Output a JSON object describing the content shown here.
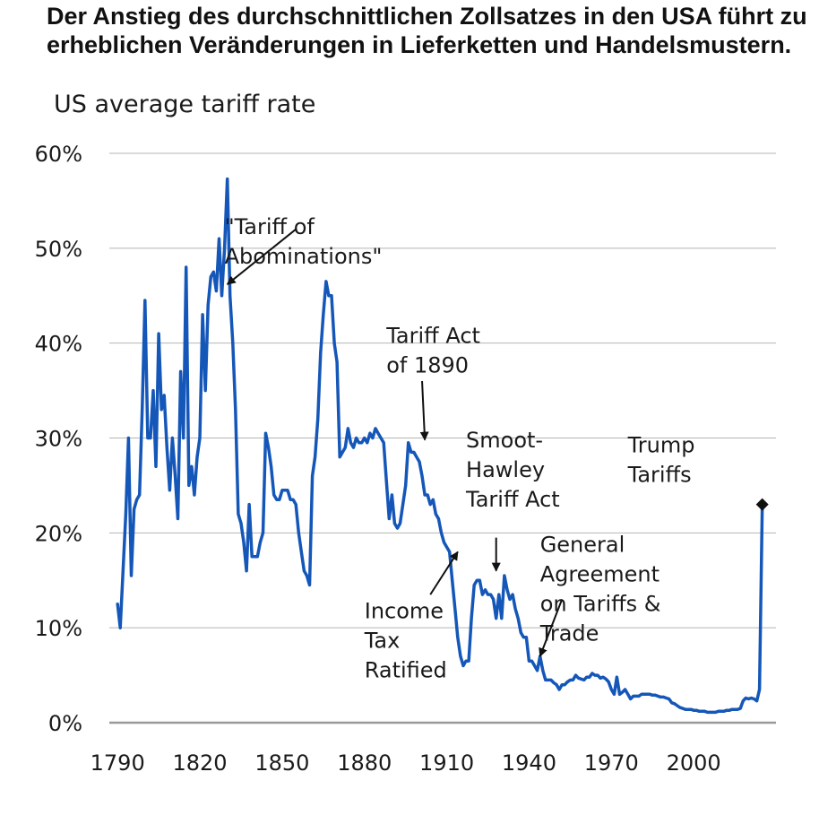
{
  "chart_data": {
    "type": "line",
    "title": "Der Anstieg des durchschnittlichen Zollsatzes in den USA führt zu erheblichen Veränderungen in Lieferketten und Handelsmustern.",
    "subtitle": "US average tariff rate",
    "xlabel": "",
    "ylabel": "",
    "xlim": [
      1787,
      2030
    ],
    "ylim": [
      0,
      60
    ],
    "x_ticks": [
      1790,
      1820,
      1850,
      1880,
      1910,
      1940,
      1970,
      2000
    ],
    "y_ticks": [
      0,
      10,
      20,
      30,
      40,
      50,
      60
    ],
    "y_tick_labels": [
      "0%",
      "10%",
      "20%",
      "30%",
      "40%",
      "50%",
      "60%"
    ],
    "grid": "horizontal",
    "colors": {
      "line": "#1557B8",
      "grid": "#b5b5b5",
      "axis": "#999999"
    },
    "series": [
      {
        "points": [
          [
            1790,
            12.5
          ],
          [
            1791,
            10
          ],
          [
            1792,
            16
          ],
          [
            1793,
            22
          ],
          [
            1794,
            30
          ],
          [
            1795,
            15.5
          ],
          [
            1796,
            22.5
          ],
          [
            1797,
            23.5
          ],
          [
            1798,
            24
          ],
          [
            1799,
            33
          ],
          [
            1800,
            44.5
          ],
          [
            1801,
            30
          ],
          [
            1802,
            30
          ],
          [
            1803,
            35
          ],
          [
            1804,
            27
          ],
          [
            1805,
            41
          ],
          [
            1806,
            33
          ],
          [
            1807,
            34.5
          ],
          [
            1808,
            29
          ],
          [
            1809,
            24.5
          ],
          [
            1810,
            30
          ],
          [
            1811,
            26
          ],
          [
            1812,
            21.5
          ],
          [
            1813,
            37
          ],
          [
            1814,
            30
          ],
          [
            1815,
            48
          ],
          [
            1816,
            25
          ],
          [
            1817,
            27
          ],
          [
            1818,
            24
          ],
          [
            1819,
            28
          ],
          [
            1820,
            30
          ],
          [
            1821,
            43
          ],
          [
            1822,
            35
          ],
          [
            1823,
            44
          ],
          [
            1824,
            47
          ],
          [
            1825,
            47.5
          ],
          [
            1826,
            45.5
          ],
          [
            1827,
            51
          ],
          [
            1828,
            45
          ],
          [
            1829,
            50
          ],
          [
            1830,
            57.3
          ],
          [
            1831,
            45
          ],
          [
            1832,
            40
          ],
          [
            1833,
            33
          ],
          [
            1834,
            22
          ],
          [
            1835,
            21
          ],
          [
            1836,
            19
          ],
          [
            1837,
            16
          ],
          [
            1838,
            23
          ],
          [
            1839,
            17.5
          ],
          [
            1840,
            17.5
          ],
          [
            1841,
            17.5
          ],
          [
            1842,
            19
          ],
          [
            1843,
            20
          ],
          [
            1844,
            30.5
          ],
          [
            1845,
            29
          ],
          [
            1846,
            27
          ],
          [
            1847,
            24
          ],
          [
            1848,
            23.5
          ],
          [
            1849,
            23.5
          ],
          [
            1850,
            24.5
          ],
          [
            1851,
            24.5
          ],
          [
            1852,
            24.5
          ],
          [
            1853,
            23.5
          ],
          [
            1854,
            23.5
          ],
          [
            1855,
            23
          ],
          [
            1856,
            20
          ],
          [
            1857,
            18
          ],
          [
            1858,
            16
          ],
          [
            1859,
            15.5
          ],
          [
            1860,
            14.5
          ],
          [
            1861,
            26
          ],
          [
            1862,
            28
          ],
          [
            1863,
            32
          ],
          [
            1864,
            39
          ],
          [
            1865,
            43
          ],
          [
            1866,
            46.5
          ],
          [
            1867,
            45
          ],
          [
            1868,
            45
          ],
          [
            1869,
            40
          ],
          [
            1870,
            38
          ],
          [
            1871,
            28
          ],
          [
            1872,
            28.5
          ],
          [
            1873,
            29
          ],
          [
            1874,
            31
          ],
          [
            1875,
            29.5
          ],
          [
            1876,
            29
          ],
          [
            1877,
            30
          ],
          [
            1878,
            29.5
          ],
          [
            1879,
            29.5
          ],
          [
            1880,
            30
          ],
          [
            1881,
            29.5
          ],
          [
            1882,
            30.5
          ],
          [
            1883,
            30
          ],
          [
            1884,
            31
          ],
          [
            1885,
            30.5
          ],
          [
            1886,
            30
          ],
          [
            1887,
            29.5
          ],
          [
            1888,
            25.5
          ],
          [
            1889,
            21.5
          ],
          [
            1890,
            24
          ],
          [
            1891,
            21
          ],
          [
            1892,
            20.5
          ],
          [
            1893,
            21
          ],
          [
            1894,
            23
          ],
          [
            1895,
            25
          ],
          [
            1896,
            29.5
          ],
          [
            1897,
            28.5
          ],
          [
            1898,
            28.5
          ],
          [
            1899,
            28
          ],
          [
            1900,
            27.5
          ],
          [
            1901,
            26
          ],
          [
            1902,
            24
          ],
          [
            1903,
            24
          ],
          [
            1904,
            23
          ],
          [
            1905,
            23.5
          ],
          [
            1906,
            22
          ],
          [
            1907,
            21.5
          ],
          [
            1908,
            20
          ],
          [
            1909,
            19
          ],
          [
            1910,
            18.5
          ],
          [
            1911,
            18
          ],
          [
            1912,
            15
          ],
          [
            1913,
            12
          ],
          [
            1914,
            9
          ],
          [
            1915,
            7
          ],
          [
            1916,
            6
          ],
          [
            1917,
            6.5
          ],
          [
            1918,
            6.5
          ],
          [
            1919,
            11
          ],
          [
            1920,
            14.5
          ],
          [
            1921,
            15
          ],
          [
            1922,
            15
          ],
          [
            1923,
            13.5
          ],
          [
            1924,
            14
          ],
          [
            1925,
            13.5
          ],
          [
            1926,
            13.5
          ],
          [
            1927,
            13
          ],
          [
            1928,
            11
          ],
          [
            1929,
            13.5
          ],
          [
            1930,
            11
          ],
          [
            1931,
            15.5
          ],
          [
            1932,
            14
          ],
          [
            1933,
            13
          ],
          [
            1934,
            13.5
          ],
          [
            1935,
            12
          ],
          [
            1936,
            11
          ],
          [
            1937,
            9.5
          ],
          [
            1938,
            9
          ],
          [
            1939,
            9
          ],
          [
            1940,
            6.5
          ],
          [
            1941,
            6.5
          ],
          [
            1942,
            6
          ],
          [
            1943,
            5.5
          ],
          [
            1944,
            7
          ],
          [
            1945,
            5.5
          ],
          [
            1946,
            4.5
          ],
          [
            1947,
            4.5
          ],
          [
            1948,
            4.5
          ],
          [
            1949,
            4.2
          ],
          [
            1950,
            4
          ],
          [
            1951,
            3.5
          ],
          [
            1952,
            4
          ],
          [
            1953,
            4
          ],
          [
            1954,
            4.3
          ],
          [
            1955,
            4.5
          ],
          [
            1956,
            4.5
          ],
          [
            1957,
            5
          ],
          [
            1958,
            4.7
          ],
          [
            1959,
            4.6
          ],
          [
            1960,
            4.5
          ],
          [
            1961,
            4.8
          ],
          [
            1962,
            4.8
          ],
          [
            1963,
            5.2
          ],
          [
            1964,
            5
          ],
          [
            1965,
            5
          ],
          [
            1966,
            4.7
          ],
          [
            1967,
            4.8
          ],
          [
            1968,
            4.6
          ],
          [
            1969,
            4.3
          ],
          [
            1970,
            3.5
          ],
          [
            1971,
            3
          ],
          [
            1972,
            4.8
          ],
          [
            1973,
            3
          ],
          [
            1974,
            3.2
          ],
          [
            1975,
            3.5
          ],
          [
            1976,
            3
          ],
          [
            1977,
            2.5
          ],
          [
            1978,
            2.8
          ],
          [
            1979,
            2.8
          ],
          [
            1980,
            2.8
          ],
          [
            1981,
            3
          ],
          [
            1982,
            3
          ],
          [
            1983,
            3
          ],
          [
            1984,
            3
          ],
          [
            1985,
            2.9
          ],
          [
            1986,
            2.9
          ],
          [
            1987,
            2.8
          ],
          [
            1988,
            2.7
          ],
          [
            1989,
            2.7
          ],
          [
            1990,
            2.6
          ],
          [
            1991,
            2.5
          ],
          [
            1992,
            2.1
          ],
          [
            1993,
            2
          ],
          [
            1994,
            1.8
          ],
          [
            1995,
            1.6
          ],
          [
            1996,
            1.5
          ],
          [
            1997,
            1.4
          ],
          [
            1998,
            1.4
          ],
          [
            1999,
            1.4
          ],
          [
            2000,
            1.3
          ],
          [
            2001,
            1.3
          ],
          [
            2002,
            1.2
          ],
          [
            2003,
            1.2
          ],
          [
            2004,
            1.2
          ],
          [
            2005,
            1.1
          ],
          [
            2006,
            1.1
          ],
          [
            2007,
            1.1
          ],
          [
            2008,
            1.1
          ],
          [
            2009,
            1.2
          ],
          [
            2010,
            1.2
          ],
          [
            2011,
            1.2
          ],
          [
            2012,
            1.3
          ],
          [
            2013,
            1.3
          ],
          [
            2014,
            1.4
          ],
          [
            2015,
            1.4
          ],
          [
            2016,
            1.4
          ],
          [
            2017,
            1.5
          ],
          [
            2018,
            2.3
          ],
          [
            2019,
            2.6
          ],
          [
            2020,
            2.5
          ],
          [
            2021,
            2.6
          ],
          [
            2022,
            2.5
          ],
          [
            2023,
            2.3
          ],
          [
            2024,
            3.5
          ],
          [
            2025,
            23
          ]
        ]
      }
    ],
    "end_marker": {
      "x": 2025,
      "y": 23
    },
    "annotations": [
      {
        "lines": [
          "\"Tariff of",
          "Abominations\""
        ],
        "text_x": 1829,
        "text_y": 51.5,
        "arrow": [
          [
            1855,
            52
          ],
          [
            1830,
            46.2
          ]
        ]
      },
      {
        "lines": [
          "Tariff Act",
          "of 1890"
        ],
        "text_x": 1888,
        "text_y": 40,
        "arrow": [
          [
            1901,
            36
          ],
          [
            1902,
            29.8
          ]
        ]
      },
      {
        "lines": [
          "Smoot-",
          "Hawley",
          "Tariff Act"
        ],
        "text_x": 1917,
        "text_y": 29,
        "arrow": [
          [
            1928,
            19.5
          ],
          [
            1928,
            16
          ]
        ]
      },
      {
        "lines": [
          "General",
          "Agreement",
          "on Tariffs &",
          "Trade"
        ],
        "text_x": 1944,
        "text_y": 18,
        "arrow": [
          [
            1952,
            13
          ],
          [
            1944,
            7
          ]
        ]
      },
      {
        "lines": [
          "Income",
          "Tax",
          "Ratified"
        ],
        "text_x": 1880,
        "text_y": 11,
        "arrow": [
          [
            1904,
            13.5
          ],
          [
            1914,
            18
          ]
        ]
      },
      {
        "lines": [
          "Trump",
          "Tariffs"
        ],
        "text_x": 1976,
        "text_y": 28.5,
        "arrow": null
      }
    ]
  }
}
